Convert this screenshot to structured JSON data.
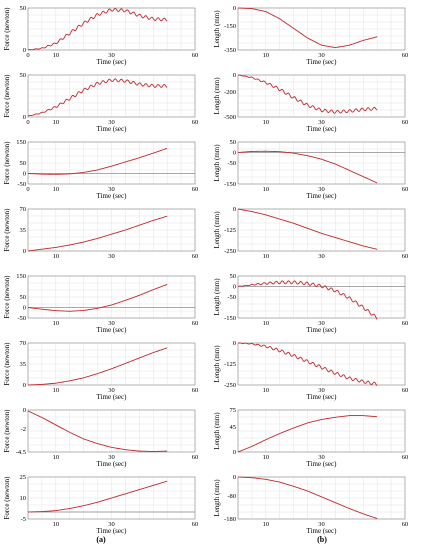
{
  "caption": {
    "a": "(a)",
    "b": "(b)"
  },
  "chart_data": [
    {
      "type": "line",
      "column": "a",
      "row": 0,
      "title": "",
      "xlabel": "Time (sec)",
      "ylabel": "Force (newton)",
      "xlim": [
        0,
        60
      ],
      "ylim": [
        0,
        50
      ],
      "xticks": [
        0,
        10,
        30,
        60
      ],
      "yticks": [
        0,
        50
      ],
      "x": [
        0,
        5,
        10,
        15,
        20,
        25,
        30,
        35,
        40,
        45,
        50
      ],
      "y": [
        0,
        2,
        8,
        20,
        32,
        42,
        48,
        47,
        41,
        37,
        36
      ],
      "oscillation": true
    },
    {
      "type": "line",
      "column": "a",
      "row": 1,
      "title": "",
      "xlabel": "Time (sec)",
      "ylabel": "Force (newton)",
      "xlim": [
        0,
        60
      ],
      "ylim": [
        0,
        50
      ],
      "xticks": [
        0,
        10,
        30,
        60
      ],
      "yticks": [
        0,
        50
      ],
      "x": [
        0,
        5,
        10,
        15,
        20,
        25,
        30,
        35,
        40,
        45,
        50
      ],
      "y": [
        1,
        5,
        12,
        22,
        32,
        40,
        44,
        43,
        39,
        37,
        37
      ],
      "oscillation": true
    },
    {
      "type": "line",
      "column": "a",
      "row": 2,
      "title": "",
      "xlabel": "Time (sec)",
      "ylabel": "Force (newton)",
      "xlim": [
        0,
        60
      ],
      "ylim": [
        -50,
        150
      ],
      "xticks": [
        0,
        10,
        30,
        60
      ],
      "yticks": [
        -50,
        0,
        50,
        150
      ],
      "x": [
        0,
        5,
        10,
        15,
        20,
        25,
        30,
        35,
        40,
        45,
        50
      ],
      "y": [
        0,
        -3,
        -4,
        -2,
        5,
        17,
        35,
        55,
        75,
        97,
        120
      ]
    },
    {
      "type": "line",
      "column": "a",
      "row": 3,
      "title": "",
      "xlabel": "",
      "ylabel": "Force (newton)",
      "xlim": [
        0,
        60
      ],
      "ylim": [
        0,
        70
      ],
      "xticks": [
        10,
        30,
        60
      ],
      "yticks": [
        0,
        35,
        70
      ],
      "x": [
        0,
        5,
        10,
        15,
        20,
        25,
        30,
        35,
        40,
        45,
        50
      ],
      "y": [
        0,
        3,
        6,
        10,
        15,
        21,
        28,
        35,
        43,
        51,
        58
      ]
    },
    {
      "type": "line",
      "column": "a",
      "row": 4,
      "title": "",
      "xlabel": "Time (sec)",
      "ylabel": "Force (newton)",
      "xlim": [
        0,
        60
      ],
      "ylim": [
        -50,
        150
      ],
      "xticks": [
        10,
        30,
        60
      ],
      "yticks": [
        -50,
        0,
        50,
        150
      ],
      "x": [
        0,
        5,
        10,
        15,
        20,
        25,
        30,
        35,
        40,
        45,
        50
      ],
      "y": [
        0,
        -8,
        -15,
        -18,
        -14,
        -4,
        12,
        34,
        58,
        85,
        110
      ]
    },
    {
      "type": "line",
      "column": "a",
      "row": 5,
      "title": "",
      "xlabel": "Time (sec)",
      "ylabel": "Force (newton)",
      "xlim": [
        0,
        60
      ],
      "ylim": [
        0,
        70
      ],
      "xticks": [
        10,
        30,
        60
      ],
      "yticks": [
        0,
        35,
        70
      ],
      "x": [
        0,
        5,
        10,
        15,
        20,
        25,
        30,
        35,
        40,
        45,
        50
      ],
      "y": [
        0,
        1,
        3,
        7,
        12,
        19,
        27,
        36,
        45,
        54,
        62
      ]
    },
    {
      "type": "line",
      "column": "a",
      "row": 6,
      "title": "",
      "xlabel": "Time (sec)",
      "ylabel": "Force (newton)",
      "xlim": [
        0,
        60
      ],
      "ylim": [
        -4.5,
        0
      ],
      "xticks": [
        10,
        30,
        60
      ],
      "yticks": [
        -4.5,
        -2,
        0
      ],
      "x": [
        0,
        5,
        10,
        15,
        20,
        25,
        30,
        35,
        40,
        45,
        50
      ],
      "y": [
        -0.1,
        -0.8,
        -1.6,
        -2.4,
        -3.1,
        -3.6,
        -4.0,
        -4.25,
        -4.4,
        -4.45,
        -4.4
      ]
    },
    {
      "type": "line",
      "column": "a",
      "row": 7,
      "title": "",
      "xlabel": "Time (sec)",
      "ylabel": "Force (newton)",
      "xlim": [
        0,
        60
      ],
      "ylim": [
        -5,
        25
      ],
      "xticks": [
        10,
        30,
        60
      ],
      "yticks": [
        -5,
        10,
        25
      ],
      "x": [
        0,
        5,
        10,
        15,
        20,
        25,
        30,
        35,
        40,
        45,
        50
      ],
      "y": [
        0,
        0.3,
        1,
        2.5,
        4.5,
        7,
        10,
        13,
        16,
        19,
        22
      ]
    },
    {
      "type": "line",
      "column": "b",
      "row": 0,
      "title": "",
      "xlabel": "Time (sec)",
      "ylabel": "Length (mm)",
      "xlim": [
        0,
        60
      ],
      "ylim": [
        -350,
        0
      ],
      "xticks": [
        10,
        30,
        60
      ],
      "yticks": [
        -350,
        -150,
        0
      ],
      "x": [
        0,
        5,
        10,
        15,
        20,
        25,
        30,
        35,
        40,
        45,
        50
      ],
      "y": [
        0,
        -5,
        -30,
        -90,
        -170,
        -250,
        -310,
        -330,
        -310,
        -270,
        -240
      ]
    },
    {
      "type": "line",
      "column": "b",
      "row": 1,
      "title": "",
      "xlabel": "Time (sec)",
      "ylabel": "Length (mm)",
      "xlim": [
        0,
        60
      ],
      "ylim": [
        -500,
        0
      ],
      "xticks": [
        10,
        30,
        60
      ],
      "yticks": [
        -500,
        -200,
        0
      ],
      "x": [
        0,
        5,
        10,
        15,
        20,
        25,
        30,
        35,
        40,
        45,
        50
      ],
      "y": [
        0,
        -30,
        -90,
        -170,
        -270,
        -360,
        -420,
        -440,
        -430,
        -410,
        -400
      ],
      "oscillation": true
    },
    {
      "type": "line",
      "column": "b",
      "row": 2,
      "title": "",
      "xlabel": "Time (sec)",
      "ylabel": "Length (mm)",
      "xlim": [
        0,
        60
      ],
      "ylim": [
        -150,
        50
      ],
      "xticks": [
        10,
        30,
        60
      ],
      "yticks": [
        -150,
        -50,
        0,
        50
      ],
      "x": [
        0,
        5,
        10,
        15,
        20,
        25,
        30,
        35,
        40,
        45,
        50
      ],
      "y": [
        0,
        5,
        6,
        4,
        -3,
        -15,
        -32,
        -55,
        -85,
        -115,
        -145
      ]
    },
    {
      "type": "line",
      "column": "b",
      "row": 3,
      "title": "",
      "xlabel": "",
      "ylabel": "Length (mm)",
      "xlim": [
        0,
        60
      ],
      "ylim": [
        -250,
        0
      ],
      "xticks": [
        10,
        30,
        60
      ],
      "yticks": [
        -250,
        -125,
        0
      ],
      "x": [
        0,
        5,
        10,
        15,
        20,
        25,
        30,
        35,
        40,
        45,
        50
      ],
      "y": [
        0,
        -15,
        -35,
        -60,
        -85,
        -115,
        -145,
        -170,
        -195,
        -220,
        -240
      ]
    },
    {
      "type": "line",
      "column": "b",
      "row": 4,
      "title": "",
      "xlabel": "Time (sec)",
      "ylabel": "Length (mm)",
      "xlim": [
        0,
        60
      ],
      "ylim": [
        -150,
        50
      ],
      "xticks": [
        10,
        30,
        60
      ],
      "yticks": [
        -150,
        -50,
        0,
        50
      ],
      "x": [
        0,
        5,
        10,
        15,
        20,
        25,
        30,
        35,
        40,
        45,
        50
      ],
      "y": [
        0,
        8,
        15,
        20,
        20,
        14,
        2,
        -20,
        -55,
        -100,
        -150
      ],
      "oscillation": true
    },
    {
      "type": "line",
      "column": "b",
      "row": 5,
      "title": "",
      "xlabel": "Time (sec)",
      "ylabel": "Length (mm)",
      "xlim": [
        0,
        60
      ],
      "ylim": [
        -250,
        0
      ],
      "xticks": [
        10,
        30,
        60
      ],
      "yticks": [
        -250,
        -125,
        0
      ],
      "x": [
        0,
        5,
        10,
        15,
        20,
        25,
        30,
        35,
        40,
        45,
        50
      ],
      "y": [
        0,
        -5,
        -20,
        -45,
        -75,
        -110,
        -145,
        -180,
        -210,
        -230,
        -245
      ],
      "oscillation": true
    },
    {
      "type": "line",
      "column": "b",
      "row": 6,
      "title": "",
      "xlabel": "Time (sec)",
      "ylabel": "Length (mm)",
      "xlim": [
        0,
        60
      ],
      "ylim": [
        0,
        75
      ],
      "xticks": [
        10,
        30,
        60
      ],
      "yticks": [
        0,
        45,
        75
      ],
      "x": [
        0,
        5,
        10,
        15,
        20,
        25,
        30,
        35,
        40,
        45,
        50
      ],
      "y": [
        0,
        10,
        22,
        33,
        43,
        52,
        58,
        62,
        65,
        65,
        63
      ]
    },
    {
      "type": "line",
      "column": "b",
      "row": 7,
      "title": "",
      "xlabel": "Time (sec)",
      "ylabel": "Length (mm)",
      "xlim": [
        0,
        60
      ],
      "ylim": [
        -180,
        0
      ],
      "xticks": [
        10,
        30,
        60
      ],
      "yticks": [
        -180,
        -80,
        0
      ],
      "x": [
        0,
        5,
        10,
        15,
        20,
        25,
        30,
        35,
        40,
        45,
        50
      ],
      "y": [
        0,
        -3,
        -10,
        -22,
        -40,
        -60,
        -85,
        -110,
        -135,
        -158,
        -178
      ]
    }
  ]
}
